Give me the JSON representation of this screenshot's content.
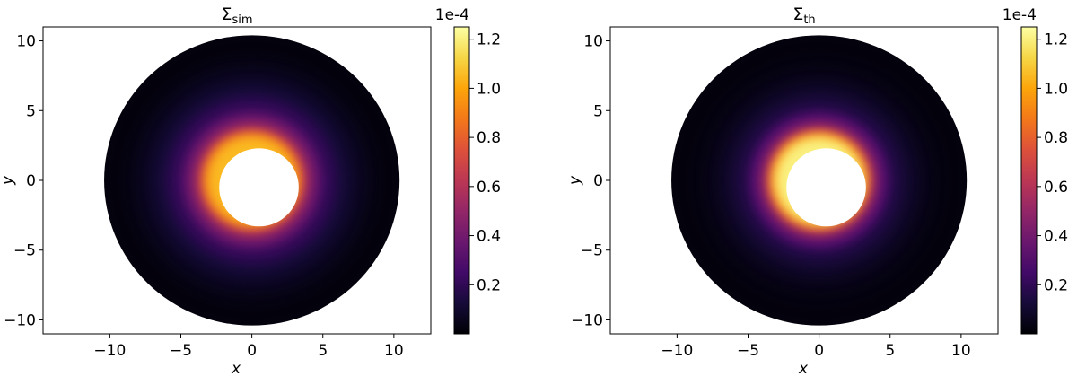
{
  "chart_data": [
    {
      "type": "heatmap",
      "title": "Σ",
      "title_subscript": "sim",
      "x_label": "x",
      "y_label": "y",
      "xlim": [
        -14.7,
        12.6
      ],
      "ylim": [
        -11,
        11
      ],
      "xticks": [
        {
          "value": -10,
          "label": "−10"
        },
        {
          "value": -5,
          "label": "−5"
        },
        0,
        5,
        10
      ],
      "yticks": [
        {
          "value": -10,
          "label": "−10"
        },
        {
          "value": -5,
          "label": "−5"
        },
        0,
        5,
        10
      ],
      "colormap": "inferno",
      "clim": [
        0,
        1.25
      ],
      "cticks": [
        0.2,
        0.4,
        0.6,
        0.8,
        1.0,
        1.2
      ],
      "offset_label": "1e-4",
      "disk_center": [
        0,
        0
      ],
      "hole_center": [
        0.5,
        -0.5
      ],
      "hole_radius": 2.8,
      "r": [
        10.4,
        9,
        8,
        7,
        6,
        5,
        4.5,
        4,
        3.6,
        3.3,
        3.1
      ],
      "values": [
        0.02,
        0.04,
        0.07,
        0.12,
        0.2,
        0.32,
        0.42,
        0.55,
        0.72,
        0.9,
        1.05
      ]
    },
    {
      "type": "heatmap",
      "title": "Σ",
      "title_subscript": "th",
      "x_label": "x",
      "y_label": "y",
      "xlim": [
        -14.7,
        12.6
      ],
      "ylim": [
        -11,
        11
      ],
      "xticks": [
        {
          "value": -10,
          "label": "−10"
        },
        {
          "value": -5,
          "label": "−5"
        },
        0,
        5,
        10
      ],
      "yticks": [
        {
          "value": -10,
          "label": "−10"
        },
        {
          "value": -5,
          "label": "−5"
        },
        0,
        5,
        10
      ],
      "colormap": "inferno",
      "clim": [
        0,
        1.25
      ],
      "cticks": [
        0.2,
        0.4,
        0.6,
        0.8,
        1.0,
        1.2
      ],
      "offset_label": "1e-4",
      "disk_center": [
        0,
        0
      ],
      "hole_center": [
        0.5,
        -0.5
      ],
      "hole_radius": 2.8,
      "r": [
        10.4,
        9,
        8,
        7,
        6,
        5,
        4.5,
        4,
        3.6,
        3.3,
        3.1
      ],
      "values": [
        0.02,
        0.03,
        0.05,
        0.09,
        0.15,
        0.27,
        0.37,
        0.52,
        0.75,
        0.98,
        1.2
      ]
    }
  ]
}
